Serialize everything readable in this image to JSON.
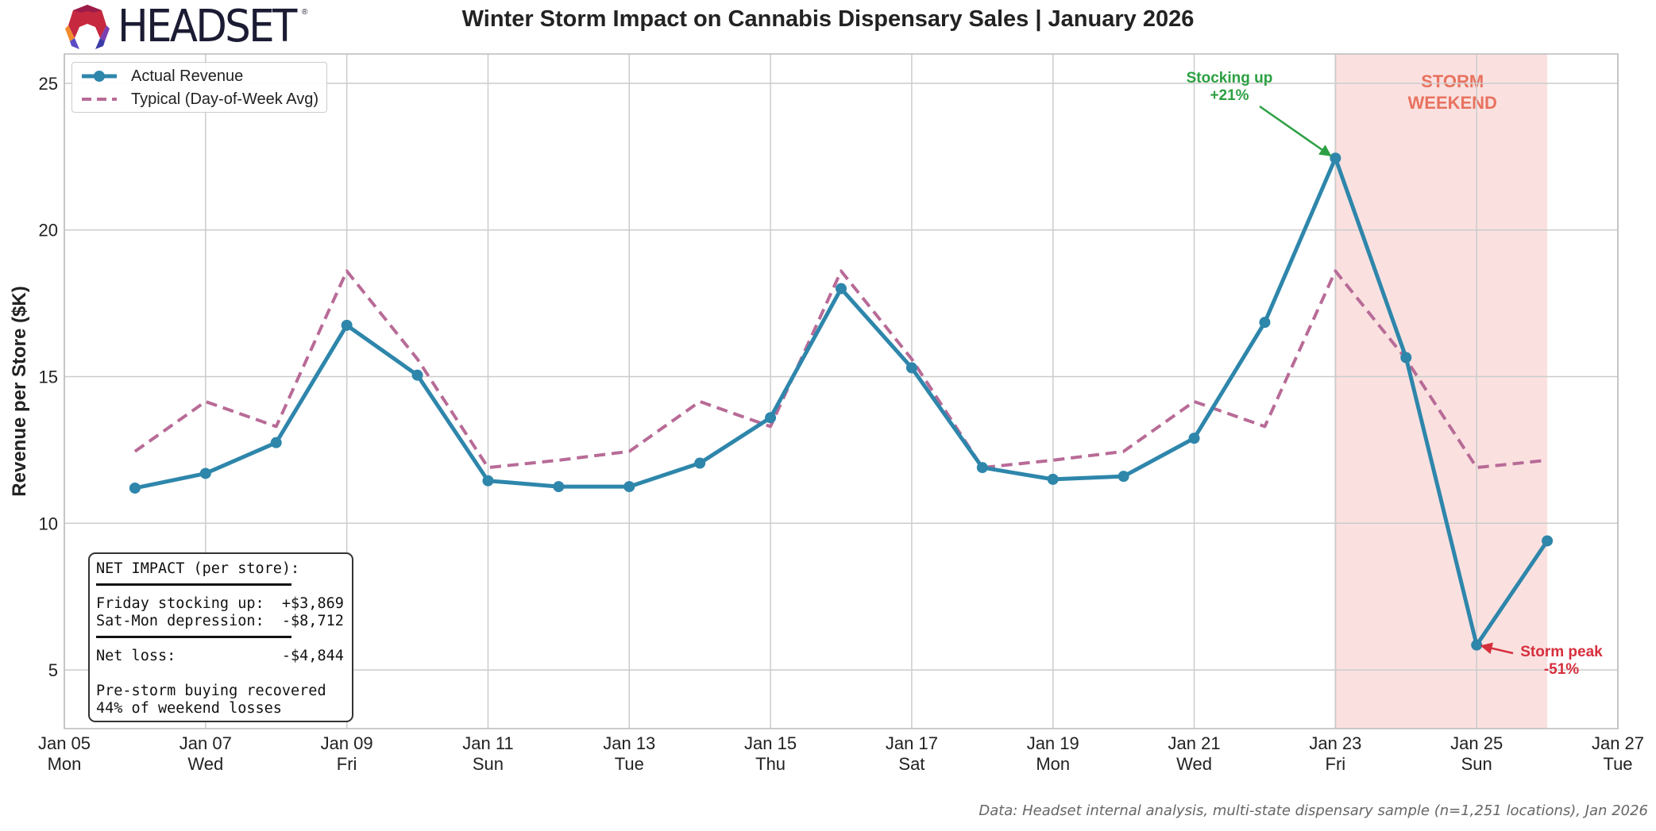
{
  "title": "Winter Storm Impact on Cannabis Dispensary Sales | January 2026",
  "logo": {
    "text": "HEADSET",
    "mark": "®"
  },
  "colors": {
    "actual": "#2e86ab",
    "typical": "#b86b97",
    "storm_band": "#f3b8b4",
    "annotation_up": "#2ca043",
    "annotation_down": "#d62f3d",
    "storm_label": "#e8725f"
  },
  "chart_data": {
    "type": "line",
    "ylabel": "Revenue per Store ($K)",
    "xlabel": "",
    "ylim": [
      3,
      26
    ],
    "y_ticks": [
      5,
      10,
      15,
      20,
      25
    ],
    "x_range": [
      "2026-01-05",
      "2026-01-27"
    ],
    "x_ticks": [
      {
        "date": "2026-01-05",
        "label": "Jan 05",
        "day": "Mon"
      },
      {
        "date": "2026-01-07",
        "label": "Jan 07",
        "day": "Wed"
      },
      {
        "date": "2026-01-09",
        "label": "Jan 09",
        "day": "Fri"
      },
      {
        "date": "2026-01-11",
        "label": "Jan 11",
        "day": "Sun"
      },
      {
        "date": "2026-01-13",
        "label": "Jan 13",
        "day": "Tue"
      },
      {
        "date": "2026-01-15",
        "label": "Jan 15",
        "day": "Thu"
      },
      {
        "date": "2026-01-17",
        "label": "Jan 17",
        "day": "Sat"
      },
      {
        "date": "2026-01-19",
        "label": "Jan 19",
        "day": "Mon"
      },
      {
        "date": "2026-01-21",
        "label": "Jan 21",
        "day": "Wed"
      },
      {
        "date": "2026-01-23",
        "label": "Jan 23",
        "day": "Fri"
      },
      {
        "date": "2026-01-25",
        "label": "Jan 25",
        "day": "Sun"
      },
      {
        "date": "2026-01-27",
        "label": "Jan 27",
        "day": "Tue"
      }
    ],
    "grid": true,
    "legend_position": "top-left",
    "x": [
      "2026-01-06",
      "2026-01-07",
      "2026-01-08",
      "2026-01-09",
      "2026-01-10",
      "2026-01-11",
      "2026-01-12",
      "2026-01-13",
      "2026-01-14",
      "2026-01-15",
      "2026-01-16",
      "2026-01-17",
      "2026-01-18",
      "2026-01-19",
      "2026-01-20",
      "2026-01-21",
      "2026-01-22",
      "2026-01-23",
      "2026-01-24",
      "2026-01-25",
      "2026-01-26"
    ],
    "series": [
      {
        "name": "Actual Revenue",
        "style": "solid-markers",
        "values": [
          11.2,
          11.7,
          12.75,
          16.75,
          15.05,
          11.45,
          11.25,
          11.25,
          12.05,
          13.6,
          18.0,
          15.3,
          11.9,
          11.5,
          11.6,
          12.9,
          16.85,
          22.45,
          15.65,
          5.85,
          9.4
        ]
      },
      {
        "name": "Typical (Day-of-Week Avg)",
        "style": "dashed",
        "values": [
          12.45,
          14.15,
          13.3,
          18.6,
          15.6,
          11.9,
          12.15,
          12.45,
          14.15,
          13.3,
          18.6,
          15.6,
          11.9,
          12.15,
          12.45,
          14.15,
          13.3,
          18.6,
          15.6,
          11.9,
          12.15
        ]
      }
    ],
    "storm_band": {
      "start": "2026-01-23",
      "end": "2026-01-26",
      "label_line1": "STORM",
      "label_line2": "WEEKEND"
    },
    "annotations": [
      {
        "line1": "Stocking up",
        "line2": "+21%",
        "target_date": "2026-01-23",
        "target_value": 22.45
      },
      {
        "line1": "Storm peak",
        "line2": "-51%",
        "target_date": "2026-01-25",
        "target_value": 5.85
      }
    ]
  },
  "net_impact": {
    "heading": "NET IMPACT (per store):",
    "row1": "Friday stocking up:  +$3,869",
    "row2": "Sat-Mon depression:  -$8,712",
    "row3": "Net loss:            -$4,844",
    "note1": "Pre-storm buying recovered",
    "note2": "44% of weekend losses"
  },
  "source": "Data: Headset internal analysis, multi-state dispensary sample (n=1,251 locations), Jan 2026"
}
